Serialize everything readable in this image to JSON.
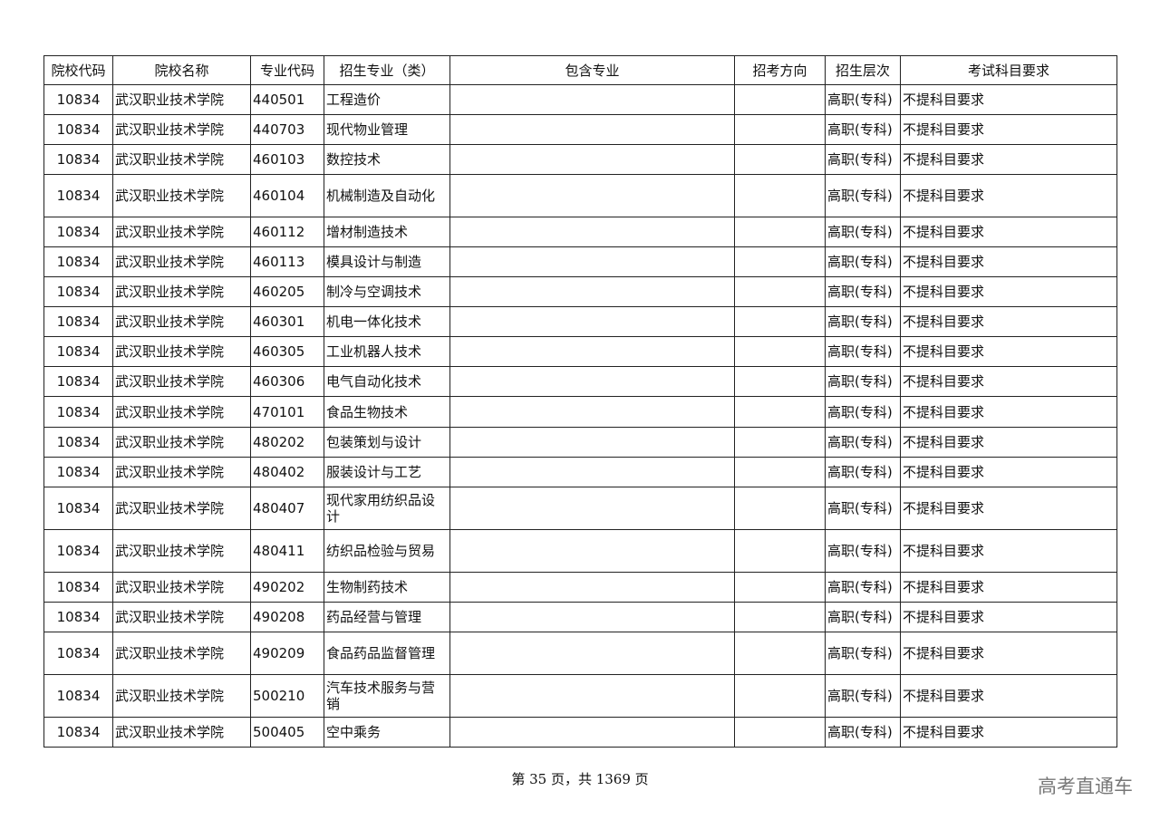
{
  "table": {
    "headers": [
      "院校代码",
      "院校名称",
      "专业代码",
      "招生专业（类）",
      "包含专业",
      "招考方向",
      "招生层次",
      "考试科目要求"
    ],
    "rows": [
      [
        "10834",
        "武汉职业技术学院",
        "440501",
        "工程造价",
        "",
        "",
        "高职(专科)",
        "不提科目要求"
      ],
      [
        "10834",
        "武汉职业技术学院",
        "440703",
        "现代物业管理",
        "",
        "",
        "高职(专科)",
        "不提科目要求"
      ],
      [
        "10834",
        "武汉职业技术学院",
        "460103",
        "数控技术",
        "",
        "",
        "高职(专科)",
        "不提科目要求"
      ],
      [
        "10834",
        "武汉职业技术学院",
        "460104",
        "机械制造及自动化",
        "",
        "",
        "高职(专科)",
        "不提科目要求"
      ],
      [
        "10834",
        "武汉职业技术学院",
        "460112",
        "增材制造技术",
        "",
        "",
        "高职(专科)",
        "不提科目要求"
      ],
      [
        "10834",
        "武汉职业技术学院",
        "460113",
        "模具设计与制造",
        "",
        "",
        "高职(专科)",
        "不提科目要求"
      ],
      [
        "10834",
        "武汉职业技术学院",
        "460205",
        "制冷与空调技术",
        "",
        "",
        "高职(专科)",
        "不提科目要求"
      ],
      [
        "10834",
        "武汉职业技术学院",
        "460301",
        "机电一体化技术",
        "",
        "",
        "高职(专科)",
        "不提科目要求"
      ],
      [
        "10834",
        "武汉职业技术学院",
        "460305",
        "工业机器人技术",
        "",
        "",
        "高职(专科)",
        "不提科目要求"
      ],
      [
        "10834",
        "武汉职业技术学院",
        "460306",
        "电气自动化技术",
        "",
        "",
        "高职(专科)",
        "不提科目要求"
      ],
      [
        "10834",
        "武汉职业技术学院",
        "470101",
        "食品生物技术",
        "",
        "",
        "高职(专科)",
        "不提科目要求"
      ],
      [
        "10834",
        "武汉职业技术学院",
        "480202",
        "包装策划与设计",
        "",
        "",
        "高职(专科)",
        "不提科目要求"
      ],
      [
        "10834",
        "武汉职业技术学院",
        "480402",
        "服装设计与工艺",
        "",
        "",
        "高职(专科)",
        "不提科目要求"
      ],
      [
        "10834",
        "武汉职业技术学院",
        "480407",
        "现代家用纺织品设计",
        "",
        "",
        "高职(专科)",
        "不提科目要求"
      ],
      [
        "10834",
        "武汉职业技术学院",
        "480411",
        "纺织品检验与贸易",
        "",
        "",
        "高职(专科)",
        "不提科目要求"
      ],
      [
        "10834",
        "武汉职业技术学院",
        "490202",
        "生物制药技术",
        "",
        "",
        "高职(专科)",
        "不提科目要求"
      ],
      [
        "10834",
        "武汉职业技术学院",
        "490208",
        "药品经营与管理",
        "",
        "",
        "高职(专科)",
        "不提科目要求"
      ],
      [
        "10834",
        "武汉职业技术学院",
        "490209",
        "食品药品监督管理",
        "",
        "",
        "高职(专科)",
        "不提科目要求"
      ],
      [
        "10834",
        "武汉职业技术学院",
        "500210",
        "汽车技术服务与营销",
        "",
        "",
        "高职(专科)",
        "不提科目要求"
      ],
      [
        "10834",
        "武汉职业技术学院",
        "500405",
        "空中乘务",
        "",
        "",
        "高职(专科)",
        "不提科目要求"
      ]
    ]
  },
  "footer": {
    "page_info": "第 35 页，共 1369 页"
  },
  "watermark": "高考直通车"
}
